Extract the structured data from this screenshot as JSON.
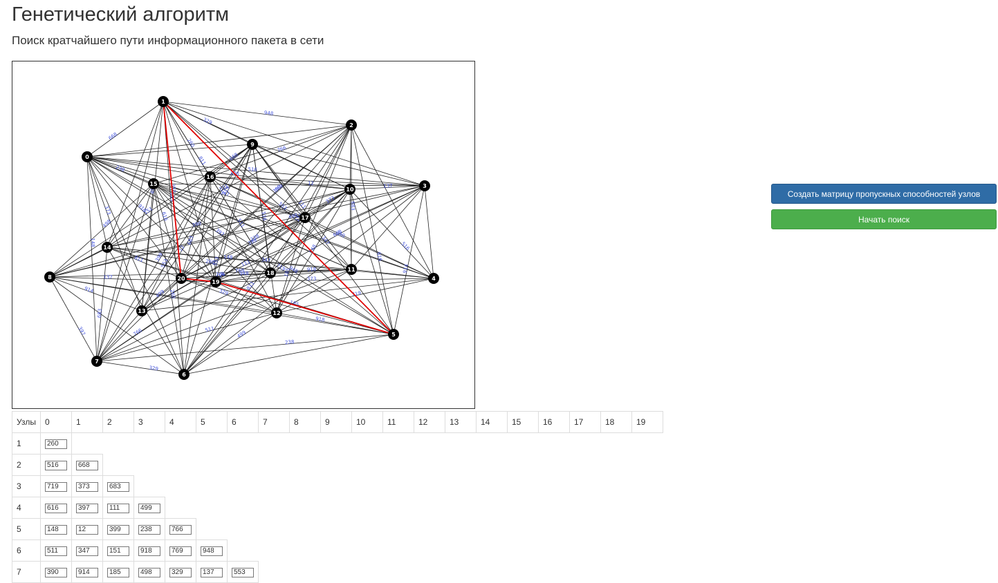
{
  "title": "Генетический алгоритм",
  "subtitle": "Поиск кратчайшего пути информационного пакета в сети",
  "buttons": {
    "create": "Создать матрицу пропускных способностей узлов",
    "start": "Начать поиск"
  },
  "colors": {
    "primary_button": "#2f6ca6",
    "success_button": "#4cae4c",
    "path_edge": "#e00000",
    "edge": "#222222",
    "edge_label": "#4455dd",
    "node": "#000000"
  },
  "graph": {
    "nodes": [
      "0",
      "1",
      "2",
      "3",
      "4",
      "5",
      "6",
      "7",
      "8",
      "9",
      "10",
      "11",
      "12",
      "13",
      "14",
      "15",
      "16",
      "17",
      "18",
      "19",
      "20"
    ],
    "edge_labels": [
      "668",
      "811",
      "516",
      "397",
      "719",
      "616",
      "148",
      "511",
      "390",
      "683",
      "373",
      "399",
      "238",
      "766",
      "347",
      "151",
      "918",
      "769",
      "948",
      "914",
      "185",
      "498",
      "329",
      "137",
      "553",
      "111",
      "499",
      "12",
      "260"
    ],
    "shortest_path": [
      "1",
      "20",
      "19",
      "5",
      "1"
    ]
  },
  "table": {
    "header_label": "Узлы",
    "columns": [
      "0",
      "1",
      "2",
      "3",
      "4",
      "5",
      "6",
      "7",
      "8",
      "9",
      "10",
      "11",
      "12",
      "13",
      "14",
      "15",
      "16",
      "17",
      "18",
      "19"
    ],
    "rows": [
      {
        "node": "1",
        "values": [
          "260"
        ]
      },
      {
        "node": "2",
        "values": [
          "516",
          "668"
        ]
      },
      {
        "node": "3",
        "values": [
          "719",
          "373",
          "683"
        ]
      },
      {
        "node": "4",
        "values": [
          "616",
          "397",
          "111",
          "499"
        ]
      },
      {
        "node": "5",
        "values": [
          "148",
          "12",
          "399",
          "238",
          "766"
        ]
      },
      {
        "node": "6",
        "values": [
          "511",
          "347",
          "151",
          "918",
          "769",
          "948"
        ]
      },
      {
        "node": "7",
        "values": [
          "390",
          "914",
          "185",
          "498",
          "329",
          "137",
          "553"
        ]
      }
    ]
  }
}
